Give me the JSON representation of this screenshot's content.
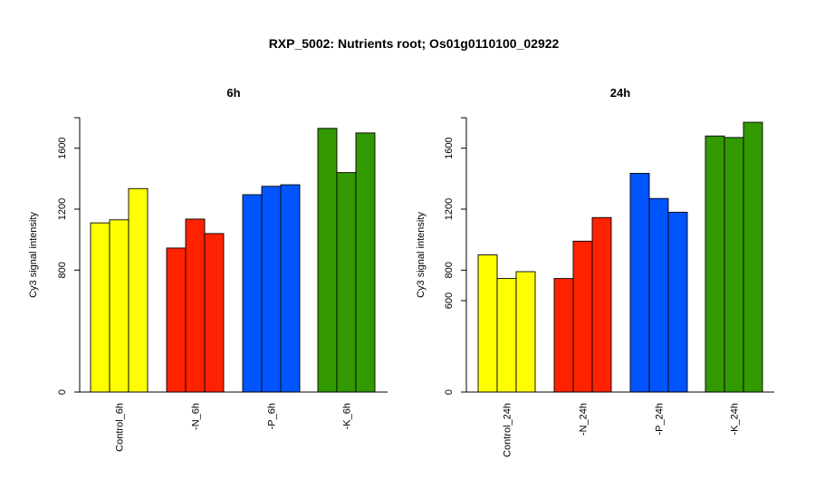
{
  "title": "RXP_5002: Nutrients root; Os01g0110100_02922",
  "chart_data": [
    {
      "type": "bar",
      "title": "6h",
      "ylabel": "Cy3 signal intensity",
      "ylim": [
        0,
        1800
      ],
      "yticks": [
        0,
        800,
        1200,
        1600
      ],
      "groups": [
        {
          "label": "Control_6h",
          "color": "#ffff00",
          "values": [
            1110,
            1130,
            1335
          ]
        },
        {
          "label": "-N_6h",
          "color": "#ff2200",
          "values": [
            945,
            1135,
            1040
          ]
        },
        {
          "label": "-P_6h",
          "color": "#0055ff",
          "values": [
            1295,
            1350,
            1360
          ]
        },
        {
          "label": "-K_6h",
          "color": "#339900",
          "values": [
            1730,
            1440,
            1700
          ]
        }
      ]
    },
    {
      "type": "bar",
      "title": "24h",
      "ylabel": "Cy3 signal intensity",
      "ylim": [
        0,
        1800
      ],
      "yticks": [
        0,
        600,
        800,
        1200,
        1600
      ],
      "groups": [
        {
          "label": "Control_24h",
          "color": "#ffff00",
          "values": [
            900,
            745,
            790
          ]
        },
        {
          "label": "-N_24h",
          "color": "#ff2200",
          "values": [
            745,
            990,
            1145
          ]
        },
        {
          "label": "-P_24h",
          "color": "#0055ff",
          "values": [
            1435,
            1270,
            1180
          ]
        },
        {
          "label": "-K_24h",
          "color": "#339900",
          "values": [
            1680,
            1670,
            1770
          ]
        }
      ]
    }
  ]
}
